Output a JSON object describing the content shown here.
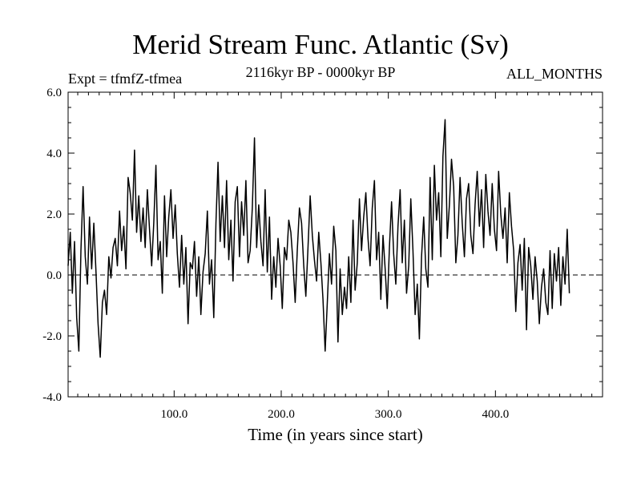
{
  "chart_data": {
    "type": "line",
    "title": "Merid Stream Func. Atlantic (Sv)",
    "subtitle": "2116kyr BP - 0000kyr BP",
    "left_label": "Expt = tfmfZ-tfmea",
    "right_label": "ALL_MONTHS",
    "xlabel": "Time (in years since start)",
    "ylabel": "",
    "xlim": [
      1,
      500
    ],
    "ylim": [
      -4.0,
      6.0
    ],
    "xticks": [
      100,
      200,
      300,
      400
    ],
    "xtick_labels": [
      "100.0",
      "200.0",
      "300.0",
      "400.0"
    ],
    "yticks": [
      -4,
      -2,
      0,
      2,
      4,
      6
    ],
    "ytick_labels": [
      "-4.0",
      "-2.0",
      "0.0",
      "2.0",
      "4.0",
      "6.0"
    ],
    "reference_line": 0,
    "series": [
      {
        "name": "Merid Stream Func. Atlantic",
        "x_start": 1,
        "x_step": 2,
        "values": [
          0.3,
          1.4,
          -0.6,
          1.1,
          -1.4,
          -2.5,
          0.8,
          2.9,
          0.6,
          -0.3,
          1.9,
          0.2,
          1.7,
          0.1,
          -1.6,
          -2.7,
          -0.9,
          -0.5,
          -1.3,
          0.6,
          -0.1,
          0.9,
          1.2,
          0.3,
          2.1,
          0.8,
          1.6,
          0.2,
          3.2,
          2.7,
          1.8,
          4.1,
          1.4,
          2.6,
          1.1,
          2.2,
          0.9,
          2.8,
          1.5,
          0.3,
          1.7,
          3.6,
          0.5,
          1.1,
          -0.6,
          2.6,
          0.6,
          1.9,
          2.8,
          1.2,
          2.3,
          0.7,
          -0.4,
          1.3,
          -0.3,
          0.9,
          -1.6,
          0.4,
          0.2,
          1.1,
          -0.7,
          0.6,
          -1.3,
          0.1,
          0.7,
          2.1,
          -0.3,
          0.5,
          -1.4,
          1.7,
          3.7,
          1.1,
          2.6,
          0.9,
          3.1,
          0.5,
          1.8,
          -0.2,
          2.4,
          2.9,
          0.6,
          2.4,
          1.3,
          3.1,
          0.4,
          0.8,
          2.2,
          4.5,
          0.9,
          2.3,
          1.1,
          0.3,
          2.8,
          0.1,
          1.9,
          -0.8,
          0.6,
          -0.4,
          1.2,
          0.3,
          -1.1,
          0.9,
          0.5,
          1.8,
          1.4,
          0.4,
          -0.9,
          0.8,
          2.2,
          1.7,
          0.3,
          -0.7,
          0.9,
          2.6,
          1.3,
          0.5,
          -0.2,
          1.4,
          0.4,
          -0.8,
          -2.5,
          -0.9,
          0.7,
          -0.3,
          1.6,
          0.8,
          -2.2,
          0.2,
          -1.3,
          -0.4,
          -1.1,
          0.6,
          -0.9,
          1.8,
          -0.5,
          0.4,
          2.5,
          0.8,
          1.9,
          2.7,
          1.2,
          0.3,
          2.2,
          3.1,
          0.5,
          1.4,
          -0.8,
          1.3,
          0.2,
          -1.1,
          0.9,
          2.4,
          0.7,
          -0.3,
          1.6,
          2.8,
          0.4,
          1.8,
          -0.6,
          0.3,
          2.5,
          0.8,
          -1.3,
          -0.3,
          -2.1,
          0.6,
          1.9,
          0.2,
          -0.4,
          3.2,
          0.5,
          3.6,
          1.8,
          2.7,
          0.6,
          3.9,
          5.1,
          1.2,
          2.3,
          3.8,
          2.9,
          0.4,
          1.3,
          3.2,
          1.7,
          0.6,
          2.5,
          3.0,
          1.3,
          0.7,
          2.3,
          3.4,
          1.6,
          2.8,
          0.9,
          3.3,
          2.1,
          1.3,
          3.0,
          1.5,
          0.8,
          3.4,
          2.0,
          1.2,
          2.2,
          0.4,
          2.7,
          1.6,
          0.8,
          -1.2,
          0.4,
          1.0,
          -0.5,
          1.2,
          -1.8,
          0.9,
          0.3,
          -0.8,
          0.6,
          -0.2,
          -1.6,
          -0.4,
          0.2,
          -0.9,
          -1.3,
          0.8,
          -1.1,
          0.7,
          -0.2,
          0.9,
          -1.0,
          0.6,
          -0.3,
          1.5,
          -0.6
        ]
      }
    ]
  }
}
